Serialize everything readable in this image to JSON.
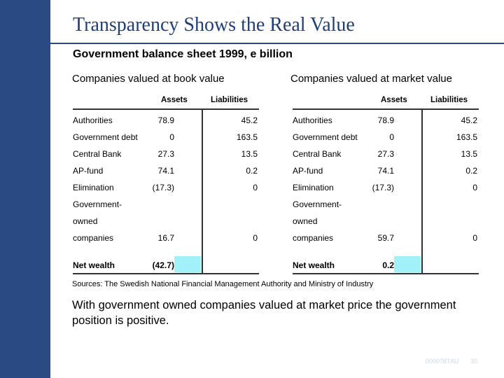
{
  "slide": {
    "title": "Transparency Shows the Real Value",
    "subtitle": "Government balance sheet 1999, e billion",
    "left_caption": "Companies valued at book value",
    "right_caption": "Companies valued at market value",
    "sources": "Sources: The Swedish National Financial Management Authority and Ministry of Industry",
    "conclusion": "With government owned companies valued at market price the government position is positive.",
    "footer_code": "000078TAU",
    "page_number": "30"
  },
  "tables": {
    "headers": {
      "assets": "Assets",
      "liabilities": "Liabilities"
    },
    "highlight_color": "#a0f2f8",
    "book": {
      "rows": [
        {
          "label": "Authorities",
          "assets": "78.9",
          "liabilities": "45.2"
        },
        {
          "label": "Government debt",
          "assets": "0",
          "liabilities": "163.5"
        },
        {
          "label": "Central Bank",
          "assets": "27.3",
          "liabilities": "13.5"
        },
        {
          "label": "AP-fund",
          "assets": "74.1",
          "liabilities": "0.2"
        },
        {
          "label": "Elimination",
          "assets": "(17.3)",
          "liabilities": "0"
        },
        {
          "label_lines": [
            "Government-",
            "owned",
            "companies"
          ],
          "assets": "16.7",
          "liabilities": "0"
        }
      ],
      "net": {
        "label": "Net wealth",
        "assets": "(42.7)"
      }
    },
    "market": {
      "rows": [
        {
          "label": "Authorities",
          "assets": "78.9",
          "liabilities": "45.2"
        },
        {
          "label": "Government debt",
          "assets": "0",
          "liabilities": "163.5"
        },
        {
          "label": "Central Bank",
          "assets": "27.3",
          "liabilities": "13.5"
        },
        {
          "label": "AP-fund",
          "assets": "74.1",
          "liabilities": "0.2"
        },
        {
          "label": "Elimination",
          "assets": "(17.3)",
          "liabilities": "0"
        },
        {
          "label_lines": [
            "Government-",
            "owned",
            "companies"
          ],
          "assets": "59.7",
          "liabilities": "0"
        }
      ],
      "net": {
        "label": "Net wealth",
        "assets": "0.2"
      }
    }
  }
}
